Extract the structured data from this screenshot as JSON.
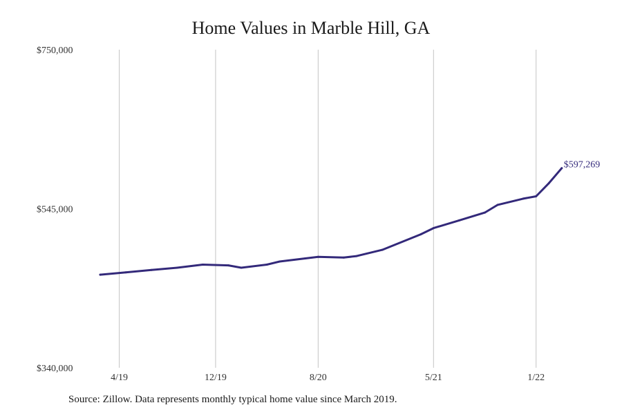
{
  "chart_data": {
    "type": "line",
    "title": "Home Values in Marble Hill, GA",
    "xlabel": "",
    "ylabel": "",
    "x_tick_labels": [
      {
        "label": "4/19",
        "month_index": 1
      },
      {
        "label": "12/19",
        "month_index": 9
      },
      {
        "label": "8/20",
        "month_index": 17
      },
      {
        "label": "5/21",
        "month_index": 26
      },
      {
        "label": "1/22",
        "month_index": 34
      }
    ],
    "y_tick_labels": [
      "$750,000",
      "$545,000",
      "$340,000"
    ],
    "y_tick_values": [
      750000,
      545000,
      340000
    ],
    "ylim": [
      340000,
      750000
    ],
    "grid": "vertical",
    "series": [
      {
        "color": "#33297a",
        "points": [
          {
            "month": "2019-03",
            "value": 460000
          },
          {
            "month": "2019-05",
            "value": 463000
          },
          {
            "month": "2019-07",
            "value": 466000
          },
          {
            "month": "2019-09",
            "value": 469000
          },
          {
            "month": "2019-11",
            "value": 473000
          },
          {
            "month": "2020-01",
            "value": 472000
          },
          {
            "month": "2020-02",
            "value": 469000
          },
          {
            "month": "2020-04",
            "value": 473000
          },
          {
            "month": "2020-05",
            "value": 477000
          },
          {
            "month": "2020-07",
            "value": 481000
          },
          {
            "month": "2020-08",
            "value": 483000
          },
          {
            "month": "2020-10",
            "value": 482000
          },
          {
            "month": "2020-11",
            "value": 484000
          },
          {
            "month": "2021-01",
            "value": 492000
          },
          {
            "month": "2021-04",
            "value": 512000
          },
          {
            "month": "2021-05",
            "value": 520000
          },
          {
            "month": "2021-07",
            "value": 530000
          },
          {
            "month": "2021-09",
            "value": 540000
          },
          {
            "month": "2021-10",
            "value": 550000
          },
          {
            "month": "2021-12",
            "value": 558000
          },
          {
            "month": "2022-01",
            "value": 561000
          },
          {
            "month": "2022-02",
            "value": 578000
          },
          {
            "month": "2022-03",
            "value": 597269
          }
        ],
        "end_label": "$597,269"
      }
    ]
  },
  "footer": {
    "source": "Source: Zillow. Data represents monthly typical home value since March 2019."
  }
}
